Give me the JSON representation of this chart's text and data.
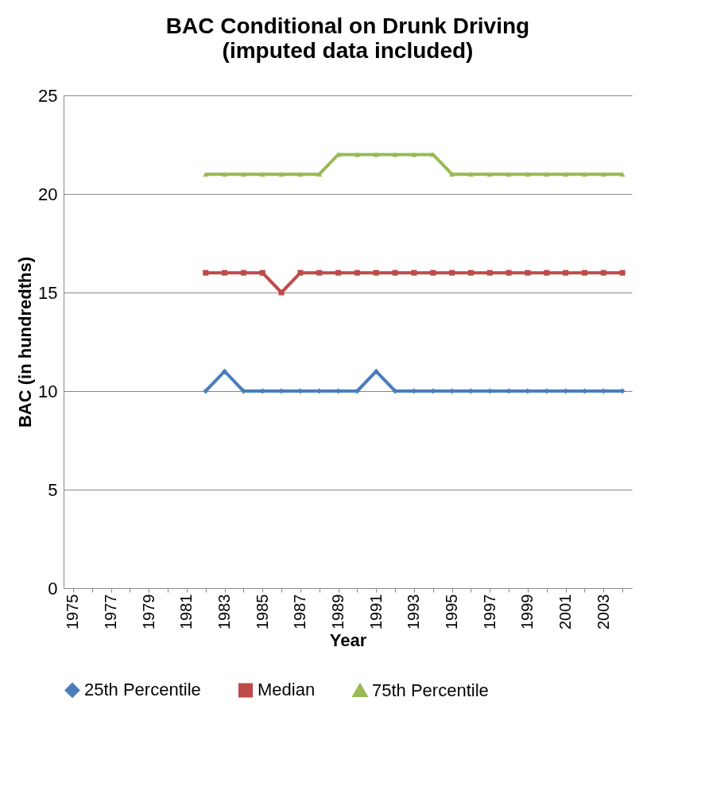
{
  "chart_data": {
    "type": "line",
    "title": "BAC Conditional on Drunk Driving",
    "subtitle": "(imputed data included)",
    "xlabel": "Year",
    "ylabel": "BAC (in hundredths)",
    "categories": [
      "1975",
      null,
      "1977",
      null,
      "1979",
      null,
      "1981",
      null,
      "1983",
      null,
      "1985",
      null,
      "1987",
      null,
      "1989",
      null,
      "1991",
      null,
      "1993",
      null,
      "1995",
      null,
      "1997",
      null,
      "1999",
      null,
      "2001",
      null,
      "2003",
      null
    ],
    "series": [
      {
        "name": "25th Percentile",
        "color": "#4a7ebb",
        "marker": "diamond",
        "values": [
          null,
          null,
          null,
          null,
          null,
          null,
          null,
          10,
          11,
          10,
          10,
          10,
          10,
          10,
          10,
          10,
          11,
          10,
          10,
          10,
          10,
          10,
          10,
          10,
          10,
          10,
          10,
          10,
          10,
          10
        ]
      },
      {
        "name": "Median",
        "color": "#be4b48",
        "marker": "square",
        "values": [
          null,
          null,
          null,
          null,
          null,
          null,
          null,
          16,
          16,
          16,
          16,
          15,
          16,
          16,
          16,
          16,
          16,
          16,
          16,
          16,
          16,
          16,
          16,
          16,
          16,
          16,
          16,
          16,
          16,
          16
        ]
      },
      {
        "name": "75th Percentile",
        "color": "#98b954",
        "marker": "triangle",
        "values": [
          null,
          null,
          null,
          null,
          null,
          null,
          null,
          21,
          21,
          21,
          21,
          21,
          21,
          21,
          22,
          22,
          22,
          22,
          22,
          22,
          21,
          21,
          21,
          21,
          21,
          21,
          21,
          21,
          21,
          21
        ]
      }
    ],
    "ylim": [
      0,
      25
    ],
    "yticks": [
      0,
      5,
      10,
      15,
      20,
      25
    ],
    "grid": "y",
    "legend": "bottom"
  }
}
